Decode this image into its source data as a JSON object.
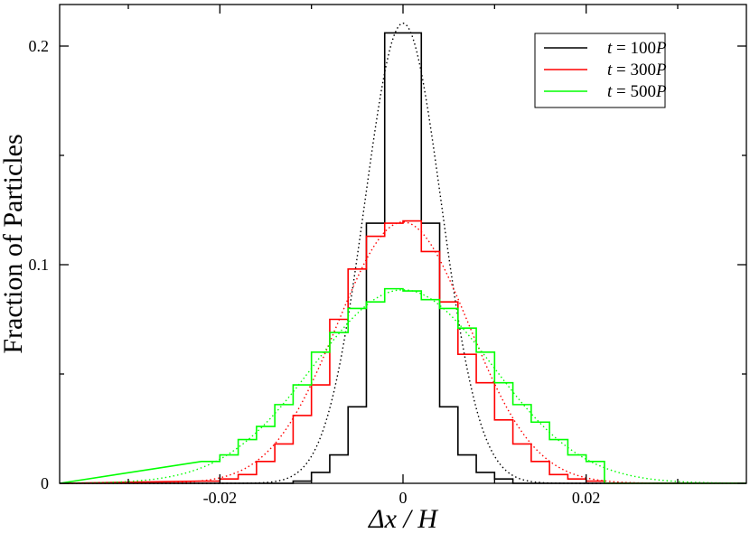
{
  "chart_data": {
    "type": "line",
    "xlabel": "Δx / H",
    "ylabel": "Fraction of Particles",
    "xlim": [
      -0.0375,
      0.0375
    ],
    "ylim": [
      0,
      0.21
    ],
    "xticks": [
      -0.02,
      0,
      0.02
    ],
    "xtick_labels": [
      "-0.02",
      "0",
      "0.02"
    ],
    "yticks": [
      0,
      0.1,
      0.2
    ],
    "ytick_labels": [
      "0",
      "0.1",
      "0.2"
    ],
    "grid": false,
    "legend_position": "top-right",
    "histogram": {
      "bin_edges": [
        -0.02,
        -0.018,
        -0.016,
        -0.014,
        -0.012,
        -0.01,
        -0.008,
        -0.006,
        -0.004,
        -0.002,
        0.0,
        0.002,
        0.004,
        0.006,
        0.008,
        0.01,
        0.012,
        0.014,
        0.016,
        0.018,
        0.02
      ]
    },
    "series": [
      {
        "name": "t = 100P",
        "name_parts": [
          "t",
          " = 100",
          "P"
        ],
        "color": "#000000",
        "x": [
          -0.021,
          -0.019,
          -0.017,
          -0.015,
          -0.013,
          -0.011,
          -0.009,
          -0.007,
          -0.005,
          -0.003,
          -0.001,
          0.001,
          0.003,
          0.005,
          0.007,
          0.009,
          0.011,
          0.013,
          0.015,
          0.017,
          0.019,
          0.021
        ],
        "y": [
          0.0,
          0.0,
          0.0,
          0.0,
          0.0,
          0.001,
          0.005,
          0.013,
          0.035,
          0.119,
          0.206,
          0.206,
          0.119,
          0.035,
          0.013,
          0.005,
          0.002,
          0.0,
          0.0,
          0.0,
          0.0,
          0.0
        ],
        "fit": {
          "amplitude": 0.2105,
          "mean": 0.0,
          "sigma": 0.0042
        }
      },
      {
        "name": "t = 300P",
        "name_parts": [
          "t",
          " = 300",
          "P"
        ],
        "color": "#ff0000",
        "x": [
          -0.021,
          -0.019,
          -0.017,
          -0.015,
          -0.013,
          -0.011,
          -0.009,
          -0.007,
          -0.005,
          -0.003,
          -0.001,
          0.001,
          0.003,
          0.005,
          0.007,
          0.009,
          0.011,
          0.013,
          0.015,
          0.017,
          0.019,
          0.021
        ],
        "y": [
          0.001,
          0.002,
          0.004,
          0.01,
          0.018,
          0.031,
          0.045,
          0.075,
          0.098,
          0.113,
          0.119,
          0.12,
          0.106,
          0.083,
          0.059,
          0.046,
          0.029,
          0.018,
          0.01,
          0.004,
          0.002,
          0.001
        ],
        "fit": {
          "amplitude": 0.1195,
          "mean": 0.0,
          "sigma": 0.0072
        }
      },
      {
        "name": "t = 500P",
        "name_parts": [
          "t",
          " = 500",
          "P"
        ],
        "color": "#00ff00",
        "x": [
          -0.021,
          -0.019,
          -0.017,
          -0.015,
          -0.013,
          -0.011,
          -0.009,
          -0.007,
          -0.005,
          -0.003,
          -0.001,
          0.001,
          0.003,
          0.005,
          0.007,
          0.009,
          0.011,
          0.013,
          0.015,
          0.017,
          0.019,
          0.021
        ],
        "y": [
          0.01,
          0.013,
          0.02,
          0.026,
          0.036,
          0.045,
          0.06,
          0.069,
          0.08,
          0.083,
          0.089,
          0.088,
          0.084,
          0.08,
          0.071,
          0.06,
          0.046,
          0.036,
          0.028,
          0.02,
          0.013,
          0.01
        ],
        "fit": {
          "amplitude": 0.0885,
          "mean": 0.0,
          "sigma": 0.0098
        }
      }
    ]
  }
}
